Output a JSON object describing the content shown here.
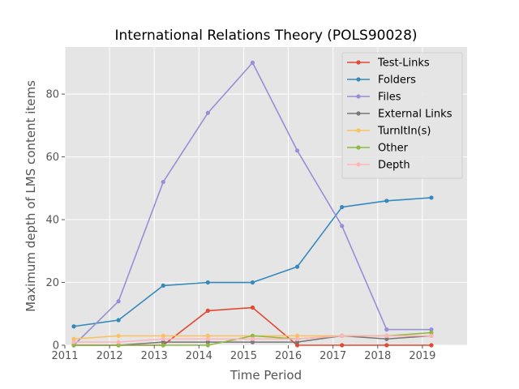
{
  "chart_data": {
    "type": "line",
    "title": "International Relations Theory (POLS90028)",
    "xlabel": "Time Period",
    "ylabel": "Maximum depth of LMS content items",
    "xlim": [
      2011,
      2020
    ],
    "ylim": [
      0,
      95
    ],
    "x_ticks": [
      2011,
      2012,
      2013,
      2014,
      2015,
      2016,
      2017,
      2018,
      2019
    ],
    "y_ticks": [
      0,
      20,
      40,
      60,
      80
    ],
    "grid": true,
    "legend_position": "top-right",
    "x": [
      2011.2,
      2012.2,
      2013.2,
      2014.2,
      2015.2,
      2016.2,
      2017.2,
      2018.2,
      2019.2
    ],
    "series": [
      {
        "name": "Test-Links",
        "color": "#E24A33",
        "values": [
          0,
          0,
          0,
          11,
          12,
          0,
          0,
          0,
          0
        ]
      },
      {
        "name": "Folders",
        "color": "#348ABD",
        "values": [
          6,
          8,
          19,
          20,
          20,
          25,
          44,
          46,
          47
        ]
      },
      {
        "name": "Files",
        "color": "#988ED5",
        "values": [
          0,
          14,
          52,
          74,
          90,
          62,
          38,
          5,
          5
        ]
      },
      {
        "name": "External Links",
        "color": "#777777",
        "values": [
          0,
          0,
          1,
          1,
          1,
          1,
          3,
          2,
          3
        ]
      },
      {
        "name": "TurnItIn(s)",
        "color": "#FBC15E",
        "values": [
          2,
          3,
          3,
          3,
          3,
          3,
          3,
          3,
          3
        ]
      },
      {
        "name": "Other",
        "color": "#8EBA42",
        "values": [
          0,
          0,
          0,
          0,
          3,
          2,
          3,
          3,
          4
        ]
      },
      {
        "name": "Depth",
        "color": "#FFB5B8",
        "values": [
          1,
          1,
          2,
          2,
          2,
          2,
          3,
          3,
          3
        ]
      }
    ]
  }
}
